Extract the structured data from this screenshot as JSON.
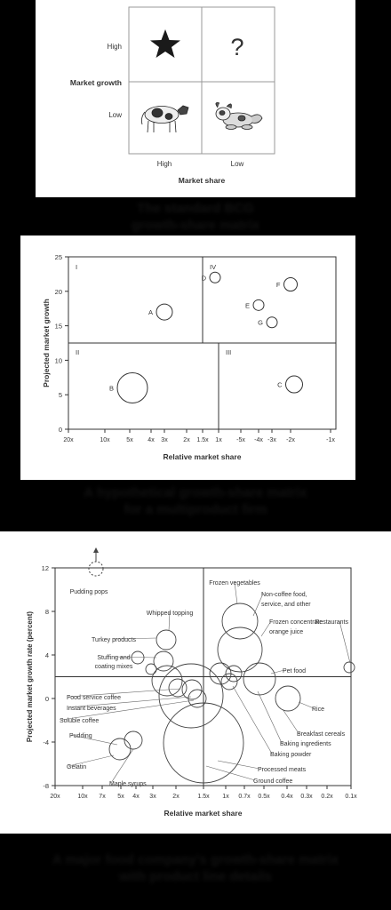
{
  "panel1": {
    "y_axis_label": "Market growth",
    "x_axis_label": "Market share",
    "y_high": "High",
    "y_low": "Low",
    "x_high": "High",
    "x_low": "Low",
    "question_mark": "?",
    "icons": [
      "star-icon",
      "question-mark-icon",
      "cow-icon",
      "dog-icon"
    ]
  },
  "caption1": {
    "line1": "The standard BCG",
    "line2": "growth-share matrix"
  },
  "panel2": {
    "chart_data": {
      "type": "scatter",
      "xlabel": "Relative market share",
      "ylabel": "Projected market growth",
      "x_ticks": [
        "20x",
        "10x",
        "5x",
        "4x",
        "3x",
        "2x",
        "1.5x",
        "1x",
        "-5x",
        "-4x",
        "-3x",
        "-2x",
        "-1x"
      ],
      "y_ticks": [
        0,
        5,
        10,
        15,
        20,
        25
      ],
      "ylim": [
        0,
        25
      ],
      "quadrants": [
        "I",
        "II",
        "III",
        "IV"
      ],
      "points": [
        {
          "label": "A",
          "x": "3x",
          "y": 17
        },
        {
          "label": "B",
          "x": "5x",
          "y": 6
        },
        {
          "label": "C",
          "x": "-2x",
          "y": 6.5
        },
        {
          "label": "D",
          "x": "1.5x",
          "y": 22
        },
        {
          "label": "E",
          "x": "-4x",
          "y": 18
        },
        {
          "label": "F",
          "x": "-2x",
          "y": 21
        },
        {
          "label": "G",
          "x": "-3x",
          "y": 15.5
        }
      ]
    }
  },
  "caption2": {
    "line1": "A hypothetical growth-share matrix",
    "line2": "for a multiproduct firm"
  },
  "panel3": {
    "chart_data": {
      "type": "scatter",
      "xlabel": "Relative market share",
      "ylabel": "Projected market growth rate (percent)",
      "x_ticks": [
        "20x",
        "10x",
        "7x",
        "5x",
        "4x",
        "3x",
        "2x",
        "1.5x",
        "1x",
        "0.7x",
        "0.5x",
        "0.4x",
        "0.3x",
        "0.2x",
        "0.1x"
      ],
      "y_ticks": [
        -8,
        -4,
        0,
        4,
        8,
        12
      ],
      "ylim": [
        -8,
        12
      ],
      "labels": [
        "Pudding pops",
        "Frozen vegetables",
        "Non-coffee food,",
        "service, and other",
        "Whipped topping",
        "Restaurants",
        "Frozen concentrate",
        "orange juice",
        "Turkey products",
        "Pet food",
        "Stuffing and",
        "coating mixes",
        "Food service coffee",
        "Instant beverages",
        "Soluble coffee",
        "Rice",
        "Breakfast cereals",
        "Baking ingredients",
        "Baking powder",
        "Pudding",
        "Processed meats",
        "Ground coffee",
        "Gelatin",
        "Maple syrups"
      ]
    }
  },
  "caption3": {
    "line1": "A major food company's growth-share matrix",
    "line2": "with product line details"
  }
}
